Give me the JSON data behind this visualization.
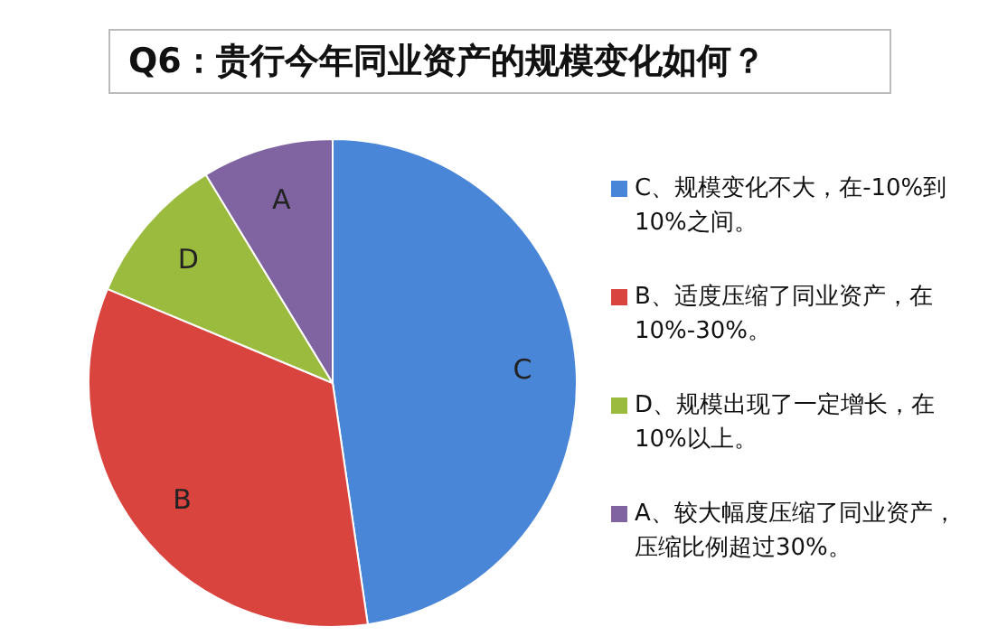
{
  "chart_data": {
    "type": "pie",
    "title": "Q6：贵行今年同业资产的规模变化如何？",
    "categories": [
      "C、规模变化不大，在-10%到10%之间。",
      "B、适度压缩了同业资产，在10%-30%。",
      "D、规模出现了一定增长，在10%以上。",
      "A、较大幅度压缩了同业资产，压缩比例超过30%。"
    ],
    "values": [
      47.7,
      33.6,
      10.0,
      8.7
    ],
    "colors": [
      "#4a86d8",
      "#d9443f",
      "#9bbb3f",
      "#8064a2"
    ],
    "value_labels": [
      "C",
      "B",
      "D",
      "A"
    ],
    "legend": "right"
  }
}
